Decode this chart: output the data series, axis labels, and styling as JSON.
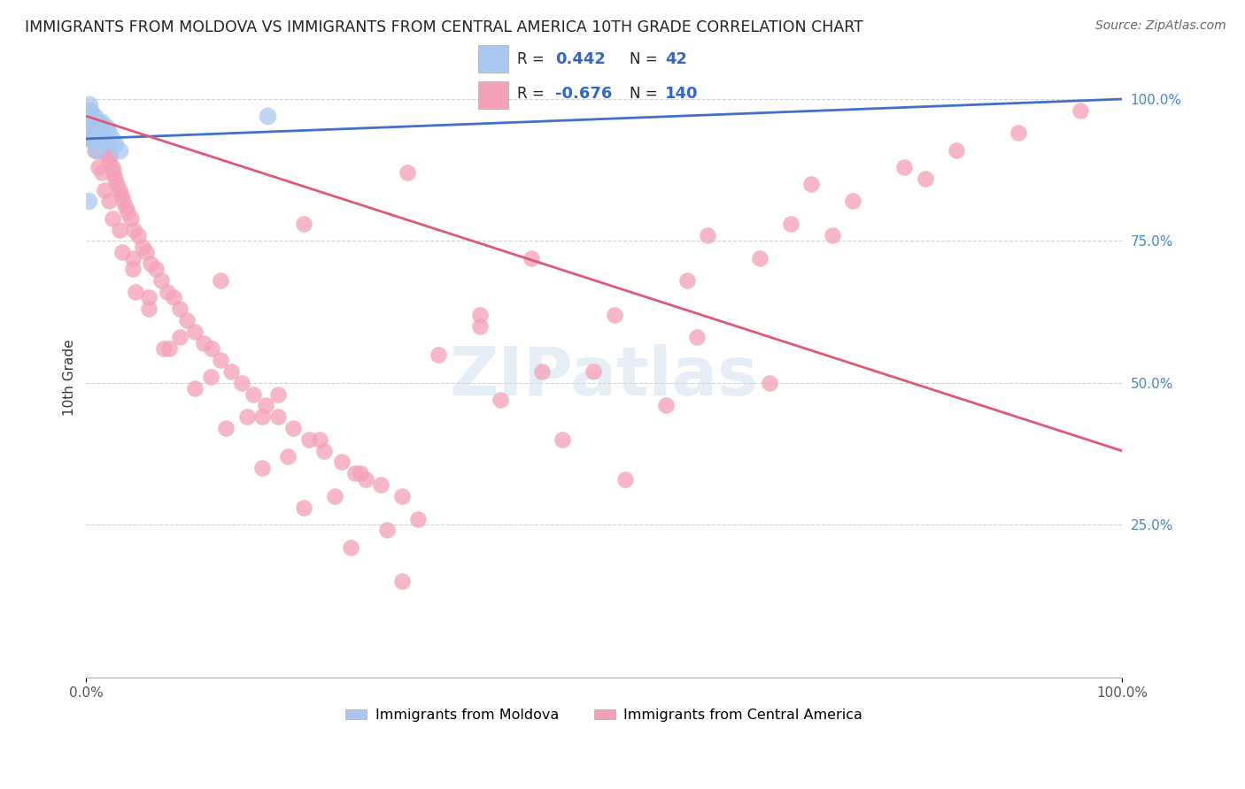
{
  "title": "IMMIGRANTS FROM MOLDOVA VS IMMIGRANTS FROM CENTRAL AMERICA 10TH GRADE CORRELATION CHART",
  "source": "Source: ZipAtlas.com",
  "ylabel": "10th Grade",
  "watermark": "ZIPatlas",
  "legend_blue_r_val": "0.442",
  "legend_blue_n_val": "42",
  "legend_pink_r_val": "-0.676",
  "legend_pink_n_val": "140",
  "legend1_label": "Immigrants from Moldova",
  "legend2_label": "Immigrants from Central America",
  "blue_color": "#a8c8f0",
  "pink_color": "#f4a0b8",
  "blue_line_color": "#4070c8",
  "pink_line_color": "#e05878",
  "moldova_x": [
    0.001,
    0.001,
    0.002,
    0.002,
    0.002,
    0.003,
    0.003,
    0.003,
    0.004,
    0.004,
    0.005,
    0.005,
    0.005,
    0.006,
    0.006,
    0.007,
    0.007,
    0.008,
    0.008,
    0.009,
    0.009,
    0.01,
    0.011,
    0.012,
    0.013,
    0.014,
    0.015,
    0.016,
    0.018,
    0.02,
    0.022,
    0.025,
    0.028,
    0.032,
    0.015,
    0.01,
    0.006,
    0.004,
    0.003,
    0.008,
    0.175,
    0.002
  ],
  "moldova_y": [
    0.97,
    0.96,
    0.98,
    0.95,
    0.94,
    0.96,
    0.95,
    0.93,
    0.97,
    0.94,
    0.95,
    0.96,
    0.93,
    0.95,
    0.94,
    0.96,
    0.93,
    0.95,
    0.94,
    0.96,
    0.93,
    0.95,
    0.94,
    0.96,
    0.94,
    0.95,
    0.96,
    0.94,
    0.93,
    0.95,
    0.94,
    0.93,
    0.92,
    0.91,
    0.92,
    0.91,
    0.97,
    0.98,
    0.99,
    0.97,
    0.97,
    0.82
  ],
  "central_x": [
    0.001,
    0.001,
    0.002,
    0.002,
    0.002,
    0.003,
    0.003,
    0.004,
    0.004,
    0.005,
    0.005,
    0.006,
    0.006,
    0.007,
    0.007,
    0.008,
    0.008,
    0.009,
    0.009,
    0.01,
    0.01,
    0.011,
    0.012,
    0.012,
    0.013,
    0.013,
    0.014,
    0.015,
    0.015,
    0.016,
    0.017,
    0.018,
    0.019,
    0.02,
    0.021,
    0.022,
    0.023,
    0.025,
    0.026,
    0.028,
    0.03,
    0.032,
    0.034,
    0.036,
    0.038,
    0.04,
    0.043,
    0.046,
    0.05,
    0.054,
    0.058,
    0.062,
    0.067,
    0.072,
    0.078,
    0.084,
    0.09,
    0.097,
    0.105,
    0.113,
    0.121,
    0.13,
    0.14,
    0.15,
    0.161,
    0.173,
    0.185,
    0.2,
    0.215,
    0.23,
    0.247,
    0.265,
    0.284,
    0.305,
    0.003,
    0.005,
    0.008,
    0.012,
    0.018,
    0.025,
    0.035,
    0.048,
    0.003,
    0.006,
    0.01,
    0.015,
    0.022,
    0.032,
    0.045,
    0.06,
    0.08,
    0.105,
    0.135,
    0.17,
    0.21,
    0.255,
    0.305,
    0.06,
    0.09,
    0.12,
    0.155,
    0.195,
    0.24,
    0.29,
    0.185,
    0.225,
    0.27,
    0.32,
    0.38,
    0.44,
    0.34,
    0.4,
    0.46,
    0.52,
    0.59,
    0.66,
    0.43,
    0.51,
    0.6,
    0.7,
    0.58,
    0.68,
    0.79,
    0.65,
    0.74,
    0.84,
    0.72,
    0.81,
    0.9,
    0.96,
    0.045,
    0.38,
    0.49,
    0.56,
    0.26,
    0.17,
    0.075,
    0.13,
    0.21,
    0.31
  ],
  "central_y": [
    0.97,
    0.96,
    0.98,
    0.95,
    0.94,
    0.96,
    0.94,
    0.97,
    0.93,
    0.95,
    0.94,
    0.96,
    0.93,
    0.95,
    0.94,
    0.96,
    0.93,
    0.95,
    0.92,
    0.96,
    0.93,
    0.94,
    0.95,
    0.93,
    0.94,
    0.93,
    0.92,
    0.94,
    0.93,
    0.92,
    0.93,
    0.91,
    0.92,
    0.9,
    0.91,
    0.89,
    0.9,
    0.88,
    0.87,
    0.86,
    0.85,
    0.84,
    0.83,
    0.82,
    0.81,
    0.8,
    0.79,
    0.77,
    0.76,
    0.74,
    0.73,
    0.71,
    0.7,
    0.68,
    0.66,
    0.65,
    0.63,
    0.61,
    0.59,
    0.57,
    0.56,
    0.54,
    0.52,
    0.5,
    0.48,
    0.46,
    0.44,
    0.42,
    0.4,
    0.38,
    0.36,
    0.34,
    0.32,
    0.3,
    0.95,
    0.94,
    0.91,
    0.88,
    0.84,
    0.79,
    0.73,
    0.66,
    0.97,
    0.94,
    0.91,
    0.87,
    0.82,
    0.77,
    0.7,
    0.63,
    0.56,
    0.49,
    0.42,
    0.35,
    0.28,
    0.21,
    0.15,
    0.65,
    0.58,
    0.51,
    0.44,
    0.37,
    0.3,
    0.24,
    0.48,
    0.4,
    0.33,
    0.26,
    0.6,
    0.52,
    0.55,
    0.47,
    0.4,
    0.33,
    0.58,
    0.5,
    0.72,
    0.62,
    0.76,
    0.85,
    0.68,
    0.78,
    0.88,
    0.72,
    0.82,
    0.91,
    0.76,
    0.86,
    0.94,
    0.98,
    0.72,
    0.62,
    0.52,
    0.46,
    0.34,
    0.44,
    0.56,
    0.68,
    0.78,
    0.87
  ],
  "blue_line_x": [
    0.0,
    1.0
  ],
  "blue_line_y": [
    0.93,
    1.0
  ],
  "pink_line_x": [
    0.0,
    1.0
  ],
  "pink_line_y": [
    0.97,
    0.38
  ],
  "xlim": [
    0.0,
    1.0
  ],
  "ylim": [
    -0.02,
    1.04
  ],
  "right_yticks": [
    0.0,
    0.25,
    0.5,
    0.75,
    1.0
  ],
  "right_yticklabels": [
    "",
    "25.0%",
    "50.0%",
    "75.0%",
    "100.0%"
  ]
}
